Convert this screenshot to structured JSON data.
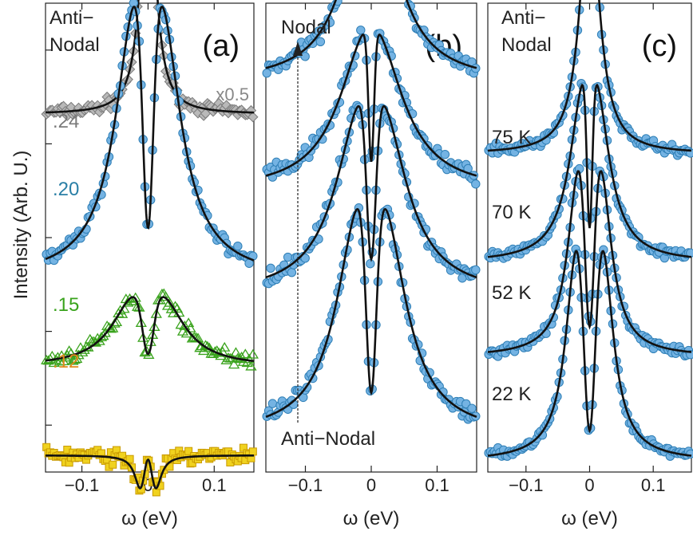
{
  "figure": {
    "ylabel": "Intensity (Arb. U.)",
    "colors": {
      "blue_fill": "#74b3e3",
      "blue_edge": "#2f7fb6",
      "gray": "#888888",
      "green": "#3aa31d",
      "yellow_fill": "#f0d21f",
      "yellow_edge": "#c99a00",
      "fit": "#111111",
      "orange_label": "#e08a1c",
      "teal_label": "#2a7fa6"
    }
  },
  "chart_data": [
    {
      "type": "scatter",
      "panel": "(a)",
      "xlabel": "ω (eV)",
      "ylabel": "Intensity (Arb. U.)",
      "xlim": [
        -0.155,
        0.16
      ],
      "xticks": [
        -0.1,
        0,
        0.1
      ],
      "xtick_labels": [
        "−0.1",
        "0",
        "0.1"
      ],
      "yticks_shown": 5,
      "grid": false,
      "annotations": [
        "Anti−",
        "Nodal",
        "x0.5"
      ],
      "series": [
        {
          "name": ".24",
          "marker": "diamond",
          "color": "gray",
          "baseline": 8.55,
          "gap": false,
          "peak_height": 6.7,
          "gamma": 0.012,
          "noise": 0.18
        },
        {
          "name": ".20",
          "marker": "circle",
          "color": "blue",
          "baseline": 4.6,
          "gap": true,
          "delta": 0.022,
          "peak_height": 6.6,
          "gamma": 0.035,
          "noise": 0.2
        },
        {
          "name": ".15",
          "marker": "triangle",
          "color": "green",
          "baseline": 2.5,
          "gap": true,
          "delta": 0.024,
          "peak_height": 1.7,
          "gamma": 0.04,
          "noise": 0.2
        },
        {
          "name": ".12",
          "marker": "square",
          "color": "yellow",
          "baseline": 0.4,
          "gap": true,
          "delta": 0.012,
          "peak_height": -0.8,
          "gamma": 0.01,
          "noise": 0.25
        }
      ]
    },
    {
      "type": "scatter",
      "panel": "(b)",
      "xlabel": "ω (eV)",
      "xlim": [
        -0.16,
        0.16
      ],
      "xticks": [
        -0.1,
        0,
        0.1
      ],
      "xtick_labels": [
        "−0.1",
        "0",
        "0.1"
      ],
      "grid": false,
      "annotations": [
        "Nodal",
        "Anti−Nodal"
      ],
      "series": [
        {
          "baseline": 9.3,
          "gap": false,
          "peak_height": 4.8,
          "gamma": 0.045,
          "noise": 0.25
        },
        {
          "baseline": 6.7,
          "gap": true,
          "delta": 0.012,
          "peak_height": 3.8,
          "gamma": 0.05,
          "noise": 0.25
        },
        {
          "baseline": 4.2,
          "gap": true,
          "delta": 0.02,
          "peak_height": 4.6,
          "gamma": 0.045,
          "noise": 0.25
        },
        {
          "baseline": 0.85,
          "gap": true,
          "delta": 0.022,
          "peak_height": 5.5,
          "gamma": 0.04,
          "noise": 0.25
        }
      ]
    },
    {
      "type": "scatter",
      "panel": "(c)",
      "xlabel": "ω (eV)",
      "xlim": [
        -0.16,
        0.16
      ],
      "xticks": [
        -0.1,
        0,
        0.1
      ],
      "xtick_labels": [
        "−0.1",
        "0",
        "0.1"
      ],
      "grid": false,
      "annotations": [
        "Anti−",
        "Nodal"
      ],
      "series": [
        {
          "name": "75 K",
          "baseline": 7.6,
          "gap": false,
          "peak_height": 6.2,
          "gamma": 0.018,
          "noise": 0.15
        },
        {
          "name": "70 K",
          "baseline": 5.0,
          "gap": true,
          "delta": 0.012,
          "peak_height": 4.3,
          "gamma": 0.025,
          "noise": 0.15
        },
        {
          "name": "52 K",
          "baseline": 2.75,
          "gap": true,
          "delta": 0.018,
          "peak_height": 4.5,
          "gamma": 0.02,
          "noise": 0.15
        },
        {
          "name": "22 K",
          "baseline": 0.25,
          "gap": true,
          "delta": 0.021,
          "peak_height": 5.1,
          "gamma": 0.02,
          "noise": 0.15
        }
      ]
    }
  ]
}
